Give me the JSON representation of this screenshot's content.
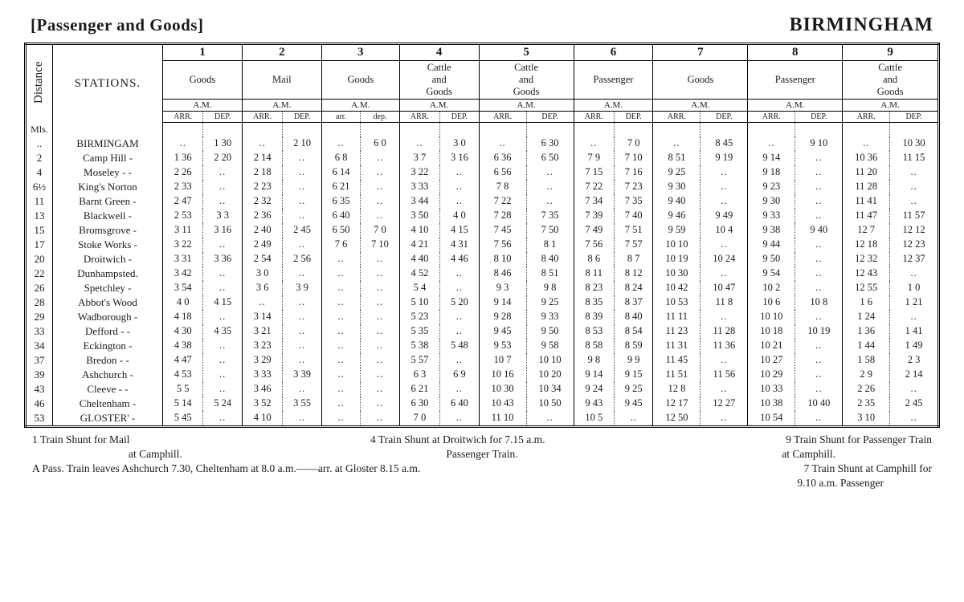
{
  "header": {
    "left": "[Passenger and Goods]",
    "right": "BIRMINGHAM"
  },
  "col_labels": {
    "distance": "Distance",
    "stations": "STATIONS.",
    "unit": "Mls."
  },
  "trains": [
    {
      "num": "1",
      "type": "Goods",
      "period": "A.M."
    },
    {
      "num": "2",
      "type": "Mail",
      "period": "A.M."
    },
    {
      "num": "3",
      "type": "Goods",
      "period": "A.M."
    },
    {
      "num": "4",
      "type": "Cattle and Goods",
      "period": "A.M."
    },
    {
      "num": "5",
      "type": "Cattle and Goods",
      "period": "A.M."
    },
    {
      "num": "6",
      "type": "Passenger",
      "period": "A.M."
    },
    {
      "num": "7",
      "type": "Goods",
      "period": "A.M."
    },
    {
      "num": "8",
      "type": "Passenger",
      "period": "A.M."
    },
    {
      "num": "9",
      "type": "Cattle and Goods",
      "period": "A.M."
    }
  ],
  "subheads": {
    "arr": "ARR.",
    "dep": "DEP.",
    "arr_lc": "arr.",
    "dep_lc": "dep."
  },
  "stations": [
    {
      "dist": "..",
      "name": "BIRMINGAM",
      "t": [
        [
          "..",
          "1 30"
        ],
        [
          "..",
          "2 10"
        ],
        [
          "..",
          "6 0"
        ],
        [
          "..",
          "3 0"
        ],
        [
          "..",
          "6 30"
        ],
        [
          "..",
          "7 0"
        ],
        [
          "..",
          "8 45"
        ],
        [
          "..",
          "9 10"
        ],
        [
          "..",
          "10 30"
        ]
      ]
    },
    {
      "dist": "2",
      "name": "Camp Hill   -",
      "t": [
        [
          "1 36",
          "2 20"
        ],
        [
          "2 14",
          ".."
        ],
        [
          "6 8",
          ".."
        ],
        [
          "3 7",
          "3 16"
        ],
        [
          "6 36",
          "6 50"
        ],
        [
          "7 9",
          "7 10"
        ],
        [
          "8 51",
          "9 19"
        ],
        [
          "9 14",
          ".."
        ],
        [
          "10 36",
          "11 15"
        ]
      ]
    },
    {
      "dist": "4",
      "name": "Moseley -   -",
      "t": [
        [
          "2 26",
          ".."
        ],
        [
          "2 18",
          ".."
        ],
        [
          "6 14",
          ".."
        ],
        [
          "3 22",
          ".."
        ],
        [
          "6 56",
          ".."
        ],
        [
          "7 15",
          "7 16"
        ],
        [
          "9 25",
          ".."
        ],
        [
          "9 18",
          ".."
        ],
        [
          "11 20",
          ".."
        ]
      ]
    },
    {
      "dist": "6½",
      "name": "King's Norton",
      "t": [
        [
          "2 33",
          ".."
        ],
        [
          "2 23",
          ".."
        ],
        [
          "6 21",
          ".."
        ],
        [
          "3 33",
          ".."
        ],
        [
          "7 8",
          ".."
        ],
        [
          "7 22",
          "7 23"
        ],
        [
          "9 30",
          ".."
        ],
        [
          "9 23",
          ".."
        ],
        [
          "11 28",
          ".."
        ]
      ]
    },
    {
      "dist": "11",
      "name": "Barnt Green -",
      "t": [
        [
          "2 47",
          ".."
        ],
        [
          "2 32",
          ".."
        ],
        [
          "6 35",
          ".."
        ],
        [
          "3 44",
          ".."
        ],
        [
          "7 22",
          ".."
        ],
        [
          "7 34",
          "7 35"
        ],
        [
          "9 40",
          ".."
        ],
        [
          "9 30",
          ".."
        ],
        [
          "11 41",
          ".."
        ]
      ]
    },
    {
      "dist": "13",
      "name": "Blackwell  -",
      "t": [
        [
          "2 53",
          "3 3"
        ],
        [
          "2 36",
          ".."
        ],
        [
          "6 40",
          ".."
        ],
        [
          "3 50",
          "4 0"
        ],
        [
          "7 28",
          "7 35"
        ],
        [
          "7 39",
          "7 40"
        ],
        [
          "9 46",
          "9 49"
        ],
        [
          "9 33",
          ".."
        ],
        [
          "11 47",
          "11 57"
        ]
      ]
    },
    {
      "dist": "15",
      "name": "Bromsgrove -",
      "t": [
        [
          "3 11",
          "3 16"
        ],
        [
          "2 40",
          "2 45"
        ],
        [
          "6 50",
          "7 0"
        ],
        [
          "4 10",
          "4 15"
        ],
        [
          "7 45",
          "7 50"
        ],
        [
          "7 49",
          "7 51"
        ],
        [
          "9 59",
          "10 4"
        ],
        [
          "9 38",
          "9 40"
        ],
        [
          "12 7",
          "12 12"
        ]
      ]
    },
    {
      "dist": "17",
      "name": "Stoke Works -",
      "t": [
        [
          "3 22",
          ".."
        ],
        [
          "2 49",
          ".."
        ],
        [
          "7 6",
          "7 10"
        ],
        [
          "4 21",
          "4 31"
        ],
        [
          "7 56",
          "8 1"
        ],
        [
          "7 56",
          "7 57"
        ],
        [
          "10 10",
          ".."
        ],
        [
          "9 44",
          ".."
        ],
        [
          "12 18",
          "12 23"
        ]
      ]
    },
    {
      "dist": "20",
      "name": "Droitwich  -",
      "t": [
        [
          "3 31",
          "3 36"
        ],
        [
          "2 54",
          "2 56"
        ],
        [
          "..",
          ".."
        ],
        [
          "4 40",
          "4 46"
        ],
        [
          "8 10",
          "8 40"
        ],
        [
          "8 6",
          "8 7"
        ],
        [
          "10 19",
          "10 24"
        ],
        [
          "9 50",
          ".."
        ],
        [
          "12 32",
          "12 37"
        ]
      ]
    },
    {
      "dist": "22",
      "name": "Dunhampsted.",
      "t": [
        [
          "3 42",
          ".."
        ],
        [
          "3 0",
          ".."
        ],
        [
          "..",
          ".."
        ],
        [
          "4 52",
          ".."
        ],
        [
          "8 46",
          "8 51"
        ],
        [
          "8 11",
          "8 12"
        ],
        [
          "10 30",
          ".."
        ],
        [
          "9 54",
          ".."
        ],
        [
          "12 43",
          ".."
        ]
      ]
    },
    {
      "dist": "26",
      "name": "Spetchley  -",
      "t": [
        [
          "3 54",
          ".."
        ],
        [
          "3 6",
          "3 9"
        ],
        [
          "..",
          ".."
        ],
        [
          "5 4",
          ".."
        ],
        [
          "9 3",
          "9 8"
        ],
        [
          "8 23",
          "8 24"
        ],
        [
          "10 42",
          "10 47"
        ],
        [
          "10 2",
          ".."
        ],
        [
          "12 55",
          "1 0"
        ]
      ]
    },
    {
      "dist": "28",
      "name": "Abbot's Wood",
      "t": [
        [
          "4 0",
          "4 15"
        ],
        [
          "..",
          ".."
        ],
        [
          "..",
          ".."
        ],
        [
          "5 10",
          "5 20"
        ],
        [
          "9 14",
          "9 25"
        ],
        [
          "8 35",
          "8 37"
        ],
        [
          "10 53",
          "11 8"
        ],
        [
          "10 6",
          "10 8"
        ],
        [
          "1 6",
          "1 21"
        ]
      ]
    },
    {
      "dist": "29",
      "name": "Wadborough -",
      "t": [
        [
          "4 18",
          ".."
        ],
        [
          "3 14",
          ".."
        ],
        [
          "..",
          ".."
        ],
        [
          "5 23",
          ".."
        ],
        [
          "9 28",
          "9 33"
        ],
        [
          "8 39",
          "8 40"
        ],
        [
          "11 11",
          ".."
        ],
        [
          "10 10",
          ".."
        ],
        [
          "1 24",
          ".."
        ]
      ]
    },
    {
      "dist": "33",
      "name": "Defford -  -",
      "t": [
        [
          "4 30",
          "4 35"
        ],
        [
          "3 21",
          ".."
        ],
        [
          "..",
          ".."
        ],
        [
          "5 35",
          ".."
        ],
        [
          "9 45",
          "9 50"
        ],
        [
          "8 53",
          "8 54"
        ],
        [
          "11 23",
          "11 28"
        ],
        [
          "10 18",
          "10 19"
        ],
        [
          "1 36",
          "1 41"
        ]
      ]
    },
    {
      "dist": "34",
      "name": "Eckington -",
      "t": [
        [
          "4 38",
          ".."
        ],
        [
          "3 23",
          ".."
        ],
        [
          "..",
          ".."
        ],
        [
          "5 38",
          "5 48"
        ],
        [
          "9 53",
          "9 58"
        ],
        [
          "8 58",
          "8 59"
        ],
        [
          "11 31",
          "11 36"
        ],
        [
          "10 21",
          ".."
        ],
        [
          "1 44",
          "1 49"
        ]
      ]
    },
    {
      "dist": "37",
      "name": "Bredon  -  -",
      "t": [
        [
          "4 47",
          ".."
        ],
        [
          "3 29",
          ".."
        ],
        [
          "..",
          ".."
        ],
        [
          "5 57",
          ".."
        ],
        [
          "10 7",
          "10 10"
        ],
        [
          "9 8",
          "9 9"
        ],
        [
          "11 45",
          ".."
        ],
        [
          "10 27",
          ".."
        ],
        [
          "1 58",
          "2 3"
        ]
      ]
    },
    {
      "dist": "39",
      "name": "Ashchurch -",
      "t": [
        [
          "4 53",
          ".."
        ],
        [
          "3 33",
          "3 39"
        ],
        [
          "..",
          ".."
        ],
        [
          "6 3",
          "6 9"
        ],
        [
          "10 16",
          "10 20"
        ],
        [
          "9 14",
          "9 15"
        ],
        [
          "11 51",
          "11 56"
        ],
        [
          "10 29",
          ".."
        ],
        [
          "2 9",
          "2 14"
        ]
      ]
    },
    {
      "dist": "43",
      "name": "Cleeve  -  -",
      "t": [
        [
          "5 5",
          ".."
        ],
        [
          "3 46",
          ".."
        ],
        [
          "..",
          ".."
        ],
        [
          "6 21",
          ".."
        ],
        [
          "10 30",
          "10 34"
        ],
        [
          "9 24",
          "9 25"
        ],
        [
          "12 8",
          ".."
        ],
        [
          "10 33",
          ".."
        ],
        [
          "2 26",
          ".."
        ]
      ]
    },
    {
      "dist": "46",
      "name": "Cheltenham -",
      "t": [
        [
          "5 14",
          "5 24"
        ],
        [
          "3 52",
          "3 55"
        ],
        [
          "..",
          ".."
        ],
        [
          "6 30",
          "6 40"
        ],
        [
          "10 43",
          "10 50"
        ],
        [
          "9 43",
          "9 45"
        ],
        [
          "12 17",
          "12 27"
        ],
        [
          "10 38",
          "10 40"
        ],
        [
          "2 35",
          "2 45"
        ]
      ]
    },
    {
      "dist": "53",
      "name": "GLOSTER'  -",
      "t": [
        [
          "5 45",
          ".."
        ],
        [
          "4 10",
          ".."
        ],
        [
          "..",
          ".."
        ],
        [
          "7 0",
          ".."
        ],
        [
          "11 10",
          ".."
        ],
        [
          "10 5",
          ".."
        ],
        [
          "12 50",
          ".."
        ],
        [
          "10 54",
          ".."
        ],
        [
          "3 10",
          ".."
        ]
      ]
    }
  ],
  "footnotes": {
    "c1a": "1 Train Shunt for Mail",
    "c1b": "at Camphill.",
    "c2a": "4 Train Shunt at Droitwich for 7.15 a.m.",
    "c2b": "Passenger Train.",
    "c3a": "9 Train Shunt for Passenger Train",
    "c3b": "at Camphill.",
    "line2": "A Pass. Train leaves Ashchurch 7.30, Cheltenham at 8.0 a.m.——arr. at Gloster 8.15 a.m.",
    "c4a": "7 Train Shunt at Camphill for",
    "c4b": "9.10 a.m. Passenger"
  },
  "style": {
    "font_family": "Times New Roman, serif",
    "text_color": "#1a1a1a",
    "background": "#ffffff",
    "table_border": "3px double #000",
    "cell_border": "1px solid #000",
    "dotted_border": "1px dotted #555",
    "title_fontsize_pt": 18,
    "body_fontsize_pt": 10,
    "footnote_fontsize_pt": 10,
    "n_trains": 9,
    "n_stations": 20
  }
}
